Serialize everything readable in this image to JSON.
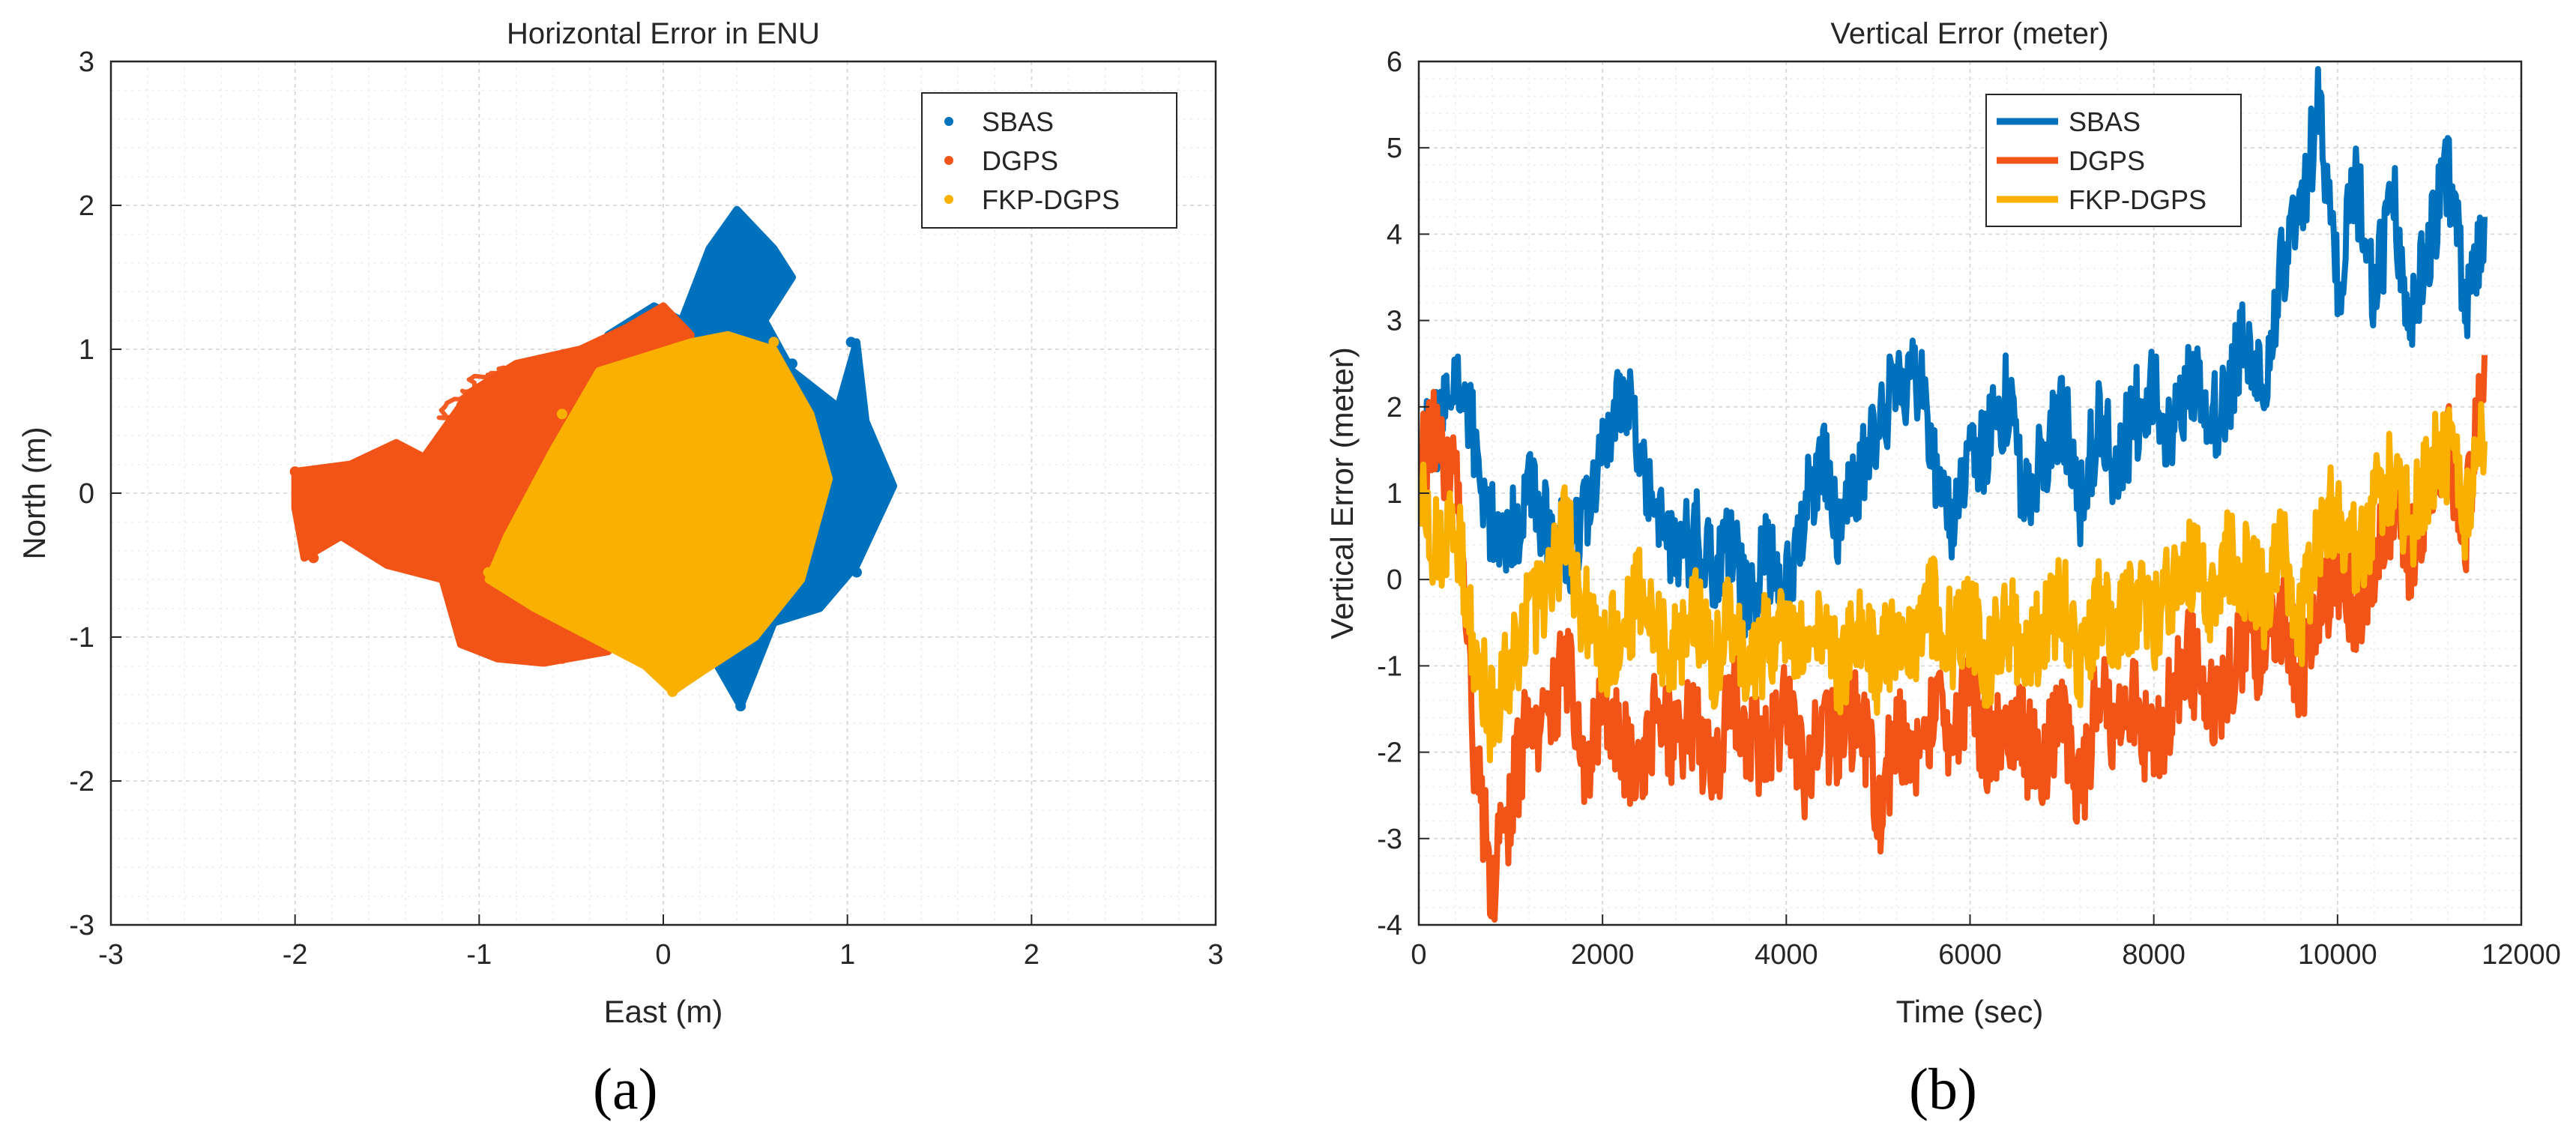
{
  "colors": {
    "sbas": "#0072BD",
    "dgps": "#F25417",
    "fkp": "#F9B000",
    "axis": "#262626",
    "grid_major": "#d7d7d7",
    "grid_minor": "#ececec"
  },
  "captions": [
    "(a)",
    "(b)"
  ],
  "chart_data": [
    {
      "type": "scatter",
      "title": "Horizontal Error in ENU",
      "xlabel": "East (m)",
      "ylabel": "North (m)",
      "xlim": [
        -3,
        3
      ],
      "ylim": [
        -3,
        3
      ],
      "xticks": [
        -3,
        -2,
        -1,
        0,
        1,
        2,
        3
      ],
      "yticks": [
        -3,
        -2,
        -1,
        0,
        1,
        2,
        3
      ],
      "xtick_labels": [
        "-3",
        "-2",
        "-1",
        "0",
        "1",
        "2",
        "3"
      ],
      "ytick_labels": [
        "-3",
        "-2",
        "-1",
        "0",
        "1",
        "2",
        "3"
      ],
      "grid": true,
      "legend": "top-right",
      "series": [
        {
          "name": "SBAS",
          "color": "#0072BD",
          "center": [
            0.2,
            0.05
          ],
          "extent_x": [
            -0.3,
            1.25
          ],
          "extent_y": [
            -1.48,
            1.97
          ],
          "outline": [
            [
              -0.05,
              -0.6
            ],
            [
              0.25,
              -1.1
            ],
            [
              0.42,
              -1.48
            ],
            [
              0.6,
              -0.9
            ],
            [
              0.85,
              -0.8
            ],
            [
              1.05,
              -0.5
            ],
            [
              1.25,
              0.05
            ],
            [
              1.1,
              0.5
            ],
            [
              1.05,
              1.05
            ],
            [
              0.95,
              0.6
            ],
            [
              0.7,
              0.85
            ],
            [
              0.55,
              1.2
            ],
            [
              0.7,
              1.5
            ],
            [
              0.6,
              1.7
            ],
            [
              0.4,
              1.97
            ],
            [
              0.25,
              1.7
            ],
            [
              0.1,
              1.2
            ],
            [
              -0.05,
              1.3
            ],
            [
              -0.3,
              1.1
            ],
            [
              -0.1,
              0.8
            ],
            [
              -0.05,
              0.3
            ]
          ],
          "sample_points": [
            [
              1.2,
              0.05
            ],
            [
              1.05,
              -0.55
            ],
            [
              0.42,
              -1.48
            ],
            [
              0.4,
              1.95
            ],
            [
              0.6,
              1.55
            ],
            [
              1.02,
              1.05
            ],
            [
              0.82,
              -0.7
            ],
            [
              0.7,
              0.9
            ]
          ]
        },
        {
          "name": "DGPS",
          "color": "#F25417",
          "center": [
            -0.45,
            -0.05
          ],
          "extent_x": [
            -2.0,
            0.3
          ],
          "extent_y": [
            -1.18,
            1.3
          ],
          "outline": [
            [
              -2.0,
              0.15
            ],
            [
              -1.7,
              0.2
            ],
            [
              -1.45,
              0.35
            ],
            [
              -1.3,
              0.25
            ],
            [
              -1.05,
              0.7
            ],
            [
              -0.8,
              0.9
            ],
            [
              -0.45,
              1.0
            ],
            [
              -0.2,
              1.15
            ],
            [
              0.0,
              1.3
            ],
            [
              0.15,
              1.1
            ],
            [
              0.1,
              0.6
            ],
            [
              0.05,
              0.0
            ],
            [
              -0.05,
              -0.7
            ],
            [
              -0.3,
              -1.1
            ],
            [
              -0.65,
              -1.18
            ],
            [
              -0.9,
              -1.15
            ],
            [
              -1.1,
              -1.05
            ],
            [
              -1.2,
              -0.6
            ],
            [
              -1.5,
              -0.5
            ],
            [
              -1.75,
              -0.3
            ],
            [
              -1.95,
              -0.45
            ],
            [
              -2.0,
              -0.1
            ]
          ],
          "sample_points": [
            [
              -2.0,
              0.15
            ],
            [
              -1.9,
              -0.45
            ],
            [
              -1.6,
              -0.1
            ],
            [
              -1.35,
              0.0
            ],
            [
              -1.1,
              0.3
            ],
            [
              -1.0,
              -1.05
            ],
            [
              -0.55,
              -1.15
            ],
            [
              0.0,
              1.25
            ],
            [
              -0.3,
              1.0
            ]
          ]
        },
        {
          "name": "FKP-DGPS",
          "color": "#F9B000",
          "center": [
            0.05,
            -0.15
          ],
          "extent_x": [
            -0.95,
            0.9
          ],
          "extent_y": [
            -1.38,
            1.12
          ],
          "outline": [
            [
              -0.85,
              -0.3
            ],
            [
              -0.6,
              0.3
            ],
            [
              -0.35,
              0.85
            ],
            [
              -0.1,
              0.95
            ],
            [
              0.15,
              1.05
            ],
            [
              0.35,
              1.1
            ],
            [
              0.6,
              1.0
            ],
            [
              0.8,
              0.55
            ],
            [
              0.9,
              0.1
            ],
            [
              0.75,
              -0.6
            ],
            [
              0.5,
              -1.0
            ],
            [
              0.2,
              -1.25
            ],
            [
              0.05,
              -1.38
            ],
            [
              -0.1,
              -1.2
            ],
            [
              -0.4,
              -1.0
            ],
            [
              -0.7,
              -0.8
            ],
            [
              -0.95,
              -0.6
            ]
          ],
          "sample_points": [
            [
              0.05,
              -1.38
            ],
            [
              0.6,
              1.05
            ],
            [
              -0.95,
              -0.55
            ],
            [
              0.85,
              0.0
            ],
            [
              -0.55,
              0.55
            ],
            [
              0.3,
              -1.1
            ]
          ]
        }
      ]
    },
    {
      "type": "line",
      "title": "Vertical Error (meter)",
      "xlabel": "Time (sec)",
      "ylabel": "Vertical Error (meter)",
      "xlim": [
        0,
        12000
      ],
      "ylim": [
        -4,
        6
      ],
      "xticks": [
        0,
        2000,
        4000,
        6000,
        8000,
        10000,
        12000
      ],
      "yticks": [
        -4,
        -3,
        -2,
        -1,
        0,
        1,
        2,
        3,
        4,
        5,
        6
      ],
      "xtick_labels": [
        "0",
        "2000",
        "4000",
        "6000",
        "8000",
        "10000",
        "12000"
      ],
      "ytick_labels": [
        "-4",
        "-3",
        "-2",
        "-1",
        "0",
        "1",
        "2",
        "3",
        "4",
        "5",
        "6"
      ],
      "grid": true,
      "legend": "top",
      "x_end": 11600,
      "series": [
        {
          "name": "SBAS",
          "color": "#0072BD",
          "x": [
            0,
            200,
            400,
            600,
            800,
            1000,
            1200,
            1400,
            1600,
            1800,
            2000,
            2200,
            2400,
            2600,
            2800,
            3000,
            3200,
            3400,
            3600,
            3800,
            4000,
            4200,
            4400,
            4600,
            4800,
            5000,
            5200,
            5400,
            5600,
            5800,
            6000,
            6200,
            6400,
            6600,
            6800,
            7000,
            7200,
            7400,
            7600,
            7800,
            8000,
            8200,
            8400,
            8600,
            8800,
            9000,
            9200,
            9400,
            9600,
            9800,
            10000,
            10200,
            10400,
            10600,
            10800,
            11000,
            11200,
            11400,
            11600
          ],
          "y": [
            1.4,
            1.8,
            2.3,
            1.6,
            0.6,
            0.5,
            1.0,
            0.6,
            0.3,
            0.7,
            1.4,
            2.2,
            1.6,
            0.8,
            0.2,
            0.6,
            0.1,
            0.3,
            -0.3,
            0.3,
            0.0,
            0.8,
            1.4,
            0.6,
            1.2,
            1.8,
            2.2,
            2.5,
            1.4,
            0.8,
            1.3,
            1.6,
            2.1,
            1.0,
            1.4,
            2.0,
            0.9,
            1.8,
            1.3,
            1.9,
            2.2,
            1.6,
            2.4,
            1.8,
            2.2,
            2.8,
            2.4,
            3.6,
            4.2,
            5.5,
            3.4,
            4.6,
            3.2,
            4.5,
            2.9,
            3.9,
            4.8,
            3.2,
            4.2
          ]
        },
        {
          "name": "DGPS",
          "color": "#F25417",
          "x": [
            0,
            200,
            400,
            600,
            800,
            1000,
            1200,
            1400,
            1600,
            1800,
            2000,
            2200,
            2400,
            2600,
            2800,
            3000,
            3200,
            3400,
            3600,
            3800,
            4000,
            4200,
            4400,
            4600,
            4800,
            5000,
            5200,
            5400,
            5600,
            5800,
            6000,
            6200,
            6400,
            6600,
            6800,
            7000,
            7200,
            7400,
            7600,
            7800,
            8000,
            8200,
            8400,
            8600,
            8800,
            9000,
            9200,
            9400,
            9600,
            9800,
            10000,
            10200,
            10400,
            10600,
            10800,
            11000,
            11200,
            11400,
            11600
          ],
          "y": [
            1.2,
            1.7,
            1.2,
            -2.0,
            -3.5,
            -2.6,
            -1.6,
            -1.8,
            -0.9,
            -2.2,
            -1.4,
            -1.9,
            -2.1,
            -1.5,
            -2.0,
            -1.6,
            -2.3,
            -1.3,
            -1.8,
            -2.0,
            -1.5,
            -2.2,
            -1.7,
            -1.9,
            -1.4,
            -2.7,
            -1.8,
            -2.2,
            -1.5,
            -1.8,
            -1.3,
            -2.0,
            -1.6,
            -1.9,
            -2.2,
            -1.4,
            -2.6,
            -1.2,
            -1.8,
            -1.5,
            -2.0,
            -1.4,
            -0.9,
            -1.6,
            -1.1,
            -0.6,
            -0.9,
            -0.5,
            -1.2,
            -0.3,
            0.1,
            -0.4,
            0.2,
            0.8,
            0.3,
            1.0,
            1.6,
            0.6,
            2.6
          ]
        },
        {
          "name": "FKP-DGPS",
          "color": "#F9B000",
          "x": [
            0,
            200,
            400,
            600,
            800,
            1000,
            1200,
            1400,
            1600,
            1800,
            2000,
            2200,
            2400,
            2600,
            2800,
            3000,
            3200,
            3400,
            3600,
            3800,
            4000,
            4200,
            4400,
            4600,
            4800,
            5000,
            5200,
            5400,
            5600,
            5800,
            6000,
            6200,
            6400,
            6600,
            6800,
            7000,
            7200,
            7400,
            7600,
            7800,
            8000,
            8200,
            8400,
            8600,
            8800,
            9000,
            9200,
            9400,
            9600,
            9800,
            10000,
            10200,
            10400,
            10600,
            10800,
            11000,
            11200,
            11400,
            11600
          ],
          "y": [
            0.9,
            0.3,
            0.6,
            -0.8,
            -1.6,
            -0.9,
            -0.4,
            -0.2,
            0.6,
            -0.4,
            -0.9,
            -0.5,
            -0.2,
            -0.6,
            -0.9,
            -0.3,
            -1.0,
            -0.5,
            -1.1,
            -0.7,
            -0.4,
            -0.9,
            -0.6,
            -1.2,
            -0.4,
            -1.0,
            -0.6,
            -0.8,
            -0.3,
            -0.7,
            -0.5,
            -1.0,
            -0.4,
            -0.8,
            -0.6,
            -0.2,
            -0.9,
            -0.3,
            -0.6,
            -0.2,
            -0.5,
            -0.1,
            0.2,
            -0.3,
            0.3,
            0.1,
            -0.2,
            0.5,
            -0.6,
            0.6,
            0.9,
            0.2,
            0.8,
            1.2,
            0.6,
            1.3,
            1.5,
            0.8,
            1.6
          ]
        }
      ]
    }
  ]
}
